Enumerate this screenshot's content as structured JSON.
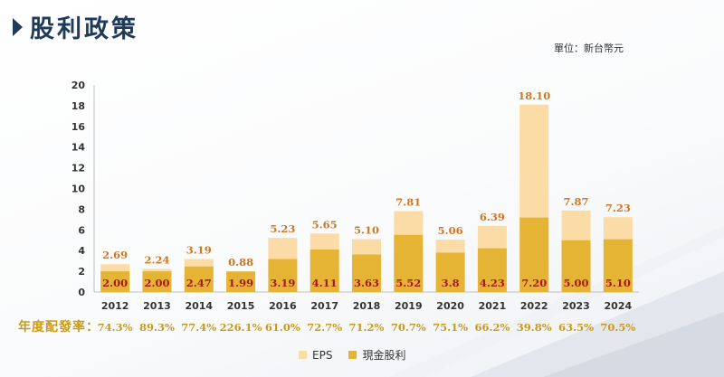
{
  "header": {
    "title": "股利政策"
  },
  "unit_label": "單位：新台幣元",
  "ratio_label": "年度配發率：",
  "colors": {
    "eps": "#fbdca6",
    "dividend": "#e5b434",
    "eps_label": "#d2761f",
    "dividend_label": "#a61a1a",
    "ratio": "#c99a1a",
    "title": "#1f3b5c"
  },
  "legend": {
    "eps": "EPS",
    "dividend": "現金股利"
  },
  "chart_data": {
    "type": "bar",
    "categories": [
      "2012",
      "2013",
      "2014",
      "2015",
      "2016",
      "2017",
      "2018",
      "2019",
      "2020",
      "2021",
      "2022",
      "2023",
      "2024"
    ],
    "series": [
      {
        "name": "EPS",
        "values": [
          2.69,
          2.24,
          3.19,
          0.88,
          5.23,
          5.65,
          5.1,
          7.81,
          5.06,
          6.39,
          18.1,
          7.87,
          7.23
        ],
        "labels": [
          "2.69",
          "2.24",
          "3.19",
          "0.88",
          "5.23",
          "5.65",
          "5.10",
          "7.81",
          "5.06",
          "6.39",
          "18.10",
          "7.87",
          "7.23"
        ]
      },
      {
        "name": "現金股利",
        "values": [
          2.0,
          2.0,
          2.47,
          1.99,
          3.19,
          4.11,
          3.63,
          5.52,
          3.8,
          4.23,
          7.2,
          5.0,
          5.1
        ],
        "labels": [
          "2.00",
          "2.00",
          "2.47",
          "1.99",
          "3.19",
          "4.11",
          "3.63",
          "5.52",
          "3.8",
          "4.23",
          "7.20",
          "5.00",
          "5.10"
        ]
      }
    ],
    "payout_ratios": [
      "74.3%",
      "89.3%",
      "77.4%",
      "226.1%",
      "61.0%",
      "72.7%",
      "71.2%",
      "70.7%",
      "75.1%",
      "66.2%",
      "39.8%",
      "63.5%",
      "70.5%"
    ],
    "ylim": [
      0,
      20
    ],
    "yticks": [
      "0",
      "2",
      "4",
      "6",
      "8",
      "10",
      "12",
      "14",
      "16",
      "18",
      "20"
    ],
    "grid": false,
    "legend_position": "bottom"
  }
}
